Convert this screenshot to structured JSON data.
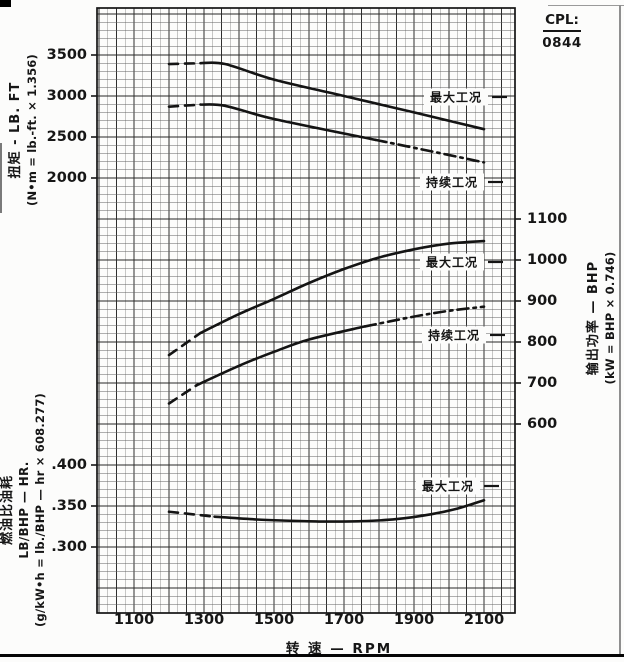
{
  "cpl_box": {
    "label": "CPL:",
    "value": "0844"
  },
  "x_axis": {
    "title": "转 速 — RPM",
    "ticks": [
      {
        "label": "1100",
        "value": 1100
      },
      {
        "label": "1300",
        "value": 1300
      },
      {
        "label": "1500",
        "value": 1500
      },
      {
        "label": "1700",
        "value": 1700
      },
      {
        "label": "1900",
        "value": 1900
      },
      {
        "label": "2100",
        "value": 2100
      }
    ]
  },
  "torque_axis": {
    "title_cn": "扭矩 - LB. FT",
    "title_formula": "(N•m = lb.-ft. × 1.356)",
    "ticks": [
      {
        "label": "3500",
        "value": 3500
      },
      {
        "label": "3000",
        "value": 3000
      },
      {
        "label": "2500",
        "value": 2500
      },
      {
        "label": "2000",
        "value": 2000
      }
    ]
  },
  "power_axis": {
    "title_cn": "输出功率 — BHP",
    "title_formula": "(kW = BHP × 0.746)",
    "ticks": [
      {
        "label": "1100",
        "value": 1100
      },
      {
        "label": "1000",
        "value": 1000
      },
      {
        "label": "900",
        "value": 900
      },
      {
        "label": "800",
        "value": 800
      },
      {
        "label": "700",
        "value": 700
      },
      {
        "label": "600",
        "value": 600
      }
    ]
  },
  "fuel_axis": {
    "title_cn": "燃油比油耗",
    "title_en": "LB/BHP — HR.",
    "title_formula": "(g/kW•h = lb./BHP — hr × 608.277)",
    "ticks": [
      {
        "label": ".400",
        "value": 0.4
      },
      {
        "label": ".350",
        "value": 0.35
      },
      {
        "label": ".300",
        "value": 0.3
      }
    ]
  },
  "chart_data": [
    {
      "id": "torque",
      "type": "line",
      "title": "扭矩 - LB. FT",
      "xlabel": "转 速 — RPM",
      "ylabel": "扭矩 - LB. FT (N•m = lb.-ft. × 1.356)",
      "xlim": [
        1000,
        2190
      ],
      "ylim": [
        1800,
        3700
      ],
      "yticks": [
        3500,
        3000,
        2500,
        2000
      ],
      "grid": "on",
      "series": [
        {
          "name": "最大工况",
          "key": "max",
          "segments": [
            {
              "style": "dashed",
              "points": [
                [
                  1200,
                  3390
                ],
                [
                  1290,
                  3400
                ]
              ]
            },
            {
              "style": "solid",
              "points": [
                [
                  1290,
                  3400
                ],
                [
                  1360,
                  3390
                ],
                [
                  1500,
                  3200
                ],
                [
                  1700,
                  3000
                ],
                [
                  1900,
                  2800
                ],
                [
                  2100,
                  2595
                ]
              ]
            }
          ]
        },
        {
          "name": "持续工况",
          "key": "continuous",
          "segments": [
            {
              "style": "dashed",
              "points": [
                [
                  1200,
                  2870
                ],
                [
                  1290,
                  2895
                ]
              ]
            },
            {
              "style": "solid",
              "points": [
                [
                  1290,
                  2895
                ],
                [
                  1360,
                  2880
                ],
                [
                  1500,
                  2720
                ],
                [
                  1790,
                  2465
                ]
              ]
            },
            {
              "style": "dashdot",
              "points": [
                [
                  1790,
                  2465
                ],
                [
                  1950,
                  2325
                ],
                [
                  2100,
                  2190
                ]
              ]
            }
          ]
        }
      ]
    },
    {
      "id": "power",
      "type": "line",
      "title": "输出功率 — BHP",
      "xlabel": "转 速 — RPM",
      "ylabel": "输出功率 — BHP (kW = BHP × 0.746)",
      "xlim": [
        1000,
        2190
      ],
      "ylim": [
        550,
        1150
      ],
      "yticks": [
        1100,
        1000,
        900,
        800,
        700,
        600
      ],
      "grid": "on",
      "series": [
        {
          "name": "最大工况",
          "key": "max",
          "segments": [
            {
              "style": "dashed",
              "points": [
                [
                  1200,
                  768
                ],
                [
                  1290,
                  822
                ]
              ]
            },
            {
              "style": "solid",
              "points": [
                [
                  1290,
                  822
                ],
                [
                  1400,
                  868
                ],
                [
                  1500,
                  905
                ],
                [
                  1600,
                  944
                ],
                [
                  1700,
                  978
                ],
                [
                  1800,
                  1006
                ],
                [
                  1900,
                  1026
                ],
                [
                  2000,
                  1040
                ],
                [
                  2100,
                  1046
                ]
              ]
            }
          ]
        },
        {
          "name": "持续工况",
          "key": "continuous",
          "segments": [
            {
              "style": "dashed",
              "points": [
                [
                  1200,
                  650
                ],
                [
                  1280,
                  695
                ]
              ]
            },
            {
              "style": "solid",
              "points": [
                [
                  1280,
                  695
                ],
                [
                  1400,
                  742
                ],
                [
                  1500,
                  776
                ],
                [
                  1600,
                  806
                ],
                [
                  1760,
                  838
                ]
              ]
            },
            {
              "style": "dashdot",
              "points": [
                [
                  1760,
                  838
                ],
                [
                  1900,
                  862
                ],
                [
                  2000,
                  876
                ],
                [
                  2100,
                  886
                ]
              ]
            }
          ]
        }
      ]
    },
    {
      "id": "fuel",
      "type": "line",
      "title": "燃油比油耗 LB/BHP — HR.",
      "xlabel": "转 速 — RPM",
      "ylabel": "燃油比油耗 LB/BHP — HR. (g/kW•h = lb./BHP — hr × 608.277)",
      "xlim": [
        1000,
        2190
      ],
      "ylim": [
        0.25,
        0.45
      ],
      "yticks": [
        0.4,
        0.35,
        0.3
      ],
      "grid": "on",
      "series": [
        {
          "name": "最大工况",
          "key": "max",
          "segments": [
            {
              "style": "dashed",
              "points": [
                [
                  1200,
                  0.343
                ],
                [
                  1330,
                  0.337
                ]
              ]
            },
            {
              "style": "solid",
              "points": [
                [
                  1330,
                  0.337
                ],
                [
                  1450,
                  0.3335
                ],
                [
                  1550,
                  0.332
                ],
                [
                  1650,
                  0.331
                ],
                [
                  1750,
                  0.3315
                ],
                [
                  1850,
                  0.334
                ],
                [
                  1950,
                  0.34
                ],
                [
                  2025,
                  0.347
                ],
                [
                  2100,
                  0.357
                ]
              ]
            }
          ]
        }
      ]
    }
  ]
}
